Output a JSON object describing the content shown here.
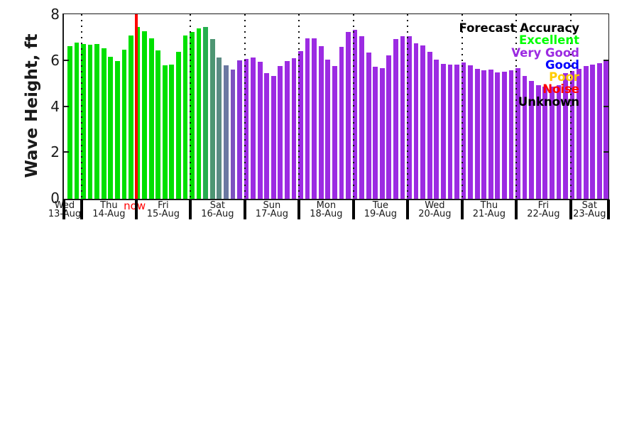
{
  "chart_data": {
    "type": "bar",
    "title": "",
    "xlabel": "",
    "ylabel": "Wave Height, ft",
    "ylim": [
      0,
      8
    ],
    "yticks": [
      0,
      2,
      4,
      6,
      8
    ],
    "grid": "dotted vertical lines at day boundaries",
    "days": [
      {
        "day": "Wed",
        "date": "13-Aug",
        "bar_count": 2
      },
      {
        "day": "Thu",
        "date": "14-Aug",
        "bar_count": 8
      },
      {
        "day": "Fri",
        "date": "15-Aug",
        "bar_count": 8
      },
      {
        "day": "Sat",
        "date": "16-Aug",
        "bar_count": 8
      },
      {
        "day": "Sun",
        "date": "17-Aug",
        "bar_count": 8
      },
      {
        "day": "Mon",
        "date": "18-Aug",
        "bar_count": 8
      },
      {
        "day": "Tue",
        "date": "19-Aug",
        "bar_count": 8
      },
      {
        "day": "Wed",
        "date": "20-Aug",
        "bar_count": 8
      },
      {
        "day": "Thu",
        "date": "21-Aug",
        "bar_count": 8
      },
      {
        "day": "Fri",
        "date": "22-Aug",
        "bar_count": 8
      },
      {
        "day": "Sat",
        "date": "23-Aug",
        "bar_count": 6
      }
    ],
    "values": [
      6.65,
      6.8,
      6.74,
      6.69,
      6.73,
      6.55,
      6.19,
      6.0,
      6.5,
      7.1,
      7.49,
      7.28,
      6.97,
      6.45,
      5.8,
      5.83,
      6.4,
      7.12,
      7.25,
      7.4,
      7.48,
      6.95,
      6.16,
      5.81,
      5.62,
      6.03,
      6.08,
      6.14,
      5.95,
      5.48,
      5.36,
      5.77,
      5.98,
      6.12,
      6.43,
      6.99,
      6.97,
      6.63,
      6.05,
      5.77,
      6.6,
      7.25,
      7.36,
      7.07,
      6.37,
      5.74,
      5.7,
      6.24,
      6.95,
      7.09,
      7.09,
      6.78,
      6.68,
      6.4,
      6.05,
      5.88,
      5.83,
      5.85,
      5.93,
      5.81,
      5.64,
      5.6,
      5.62,
      5.51,
      5.54,
      5.6,
      5.67,
      5.36,
      5.12,
      4.94,
      4.89,
      4.89,
      4.94,
      5.46,
      5.57,
      5.64,
      5.77,
      5.83,
      5.91,
      6.0
    ],
    "bar_color_segments": [
      {
        "count": 20,
        "color": "#00e000",
        "accuracy": "Excellent"
      },
      {
        "count": 1,
        "color": "#27ae4f",
        "accuracy": "Excellent-to-Very-Good blend"
      },
      {
        "count": 1,
        "color": "#4e9673",
        "accuracy": "Excellent-to-Very-Good blend"
      },
      {
        "count": 1,
        "color": "#5b8b83",
        "accuracy": "Excellent-to-Very-Good blend"
      },
      {
        "count": 1,
        "color": "#6b78a1",
        "accuracy": "Excellent-to-Very-Good blend"
      },
      {
        "count": 1,
        "color": "#7d52c0",
        "accuracy": "Excellent-to-Very-Good blend"
      },
      {
        "count": 1,
        "color": "#8e32db",
        "accuracy": "Excellent-to-Very-Good blend"
      },
      {
        "count": 54,
        "color": "#9c2be2",
        "accuracy": "Very Good"
      }
    ],
    "now_line": {
      "label": "now",
      "color": "#ff0000",
      "after_day_index": 1
    }
  },
  "legend": {
    "title": "Forecast Accuracy",
    "title_color": "#000000",
    "entries": [
      {
        "label": "Excellent",
        "color": "#00ff00"
      },
      {
        "label": "Very Good",
        "color": "#9c2be2"
      },
      {
        "label": "Good",
        "color": "#0000ff"
      },
      {
        "label": "Poor",
        "color": "#ffcc00"
      },
      {
        "label": "Noise",
        "color": "#ff0000"
      },
      {
        "label": "Unknown",
        "color": "#000000"
      }
    ]
  }
}
